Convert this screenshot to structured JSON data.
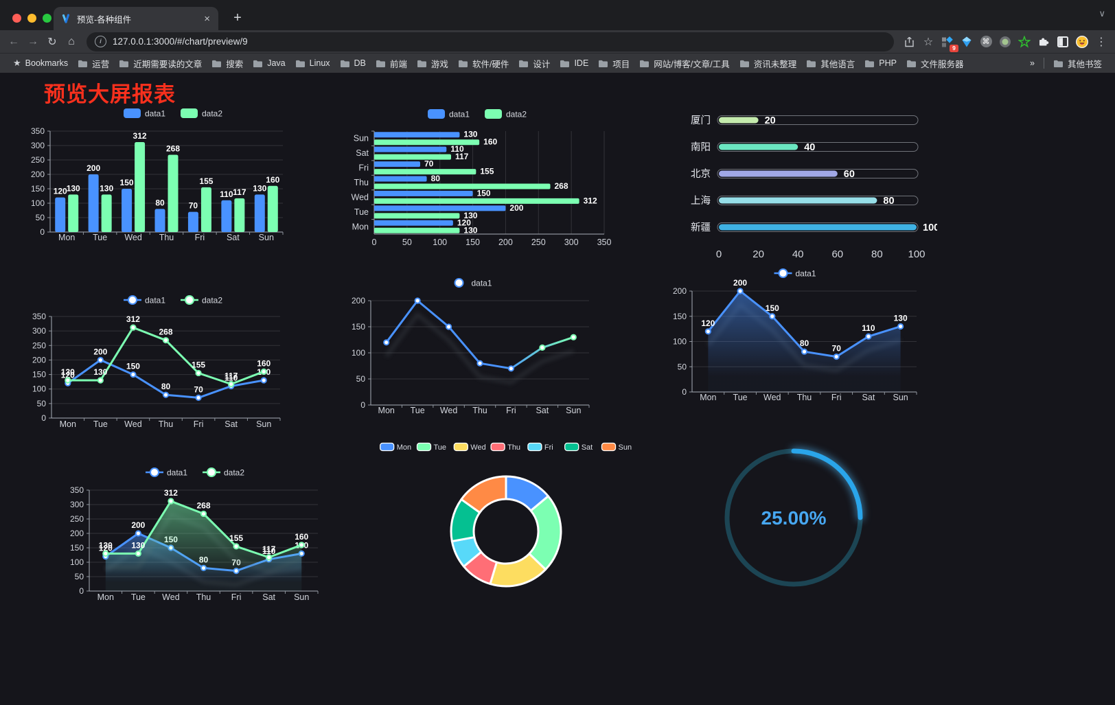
{
  "browser": {
    "traffic_lights": [
      "#ff5f57",
      "#febc2e",
      "#28c840"
    ],
    "tab_title": "预览-各种组件",
    "new_tab_label": "+",
    "url": "127.0.0.1:3000/#/chart/preview/9",
    "extension_badge_count": "9"
  },
  "icons": {
    "back": "←",
    "forward": "→",
    "reload": "↻",
    "home": "⌂",
    "info": "i",
    "bookmark_star": "☆",
    "menu_dots": "⋮",
    "tab_close": "×",
    "command": "⌘",
    "chevron_down": "∨",
    "bookmarks_star": "★"
  },
  "bookmarks": {
    "root_label": "Bookmarks",
    "items": [
      "运营",
      "近期需要读的文章",
      "搜索",
      "Java",
      "Linux",
      "DB",
      "前端",
      "游戏",
      "软件/硬件",
      "设计",
      "IDE",
      "项目",
      "网站/博客/文章/工具",
      "资讯未整理",
      "其他语言",
      "PHP",
      "文件服务器"
    ],
    "overflow": "»",
    "other_label": "其他书签"
  },
  "page": {
    "title": "预览大屏报表",
    "title_color": "#f7301d",
    "background": "#15151b"
  },
  "chart_data": [
    {
      "id": "grouped-bar-vertical",
      "type": "bar",
      "categories": [
        "Mon",
        "Tue",
        "Wed",
        "Thu",
        "Fri",
        "Sat",
        "Sun"
      ],
      "series": [
        {
          "name": "data1",
          "color": "#4992ff",
          "values": [
            120,
            200,
            150,
            80,
            70,
            110,
            130
          ]
        },
        {
          "name": "data2",
          "color": "#7cffb2",
          "values": [
            130,
            130,
            312,
            268,
            155,
            117,
            160
          ]
        }
      ],
      "ylim": [
        0,
        350
      ],
      "yticks": [
        0,
        50,
        100,
        150,
        200,
        250,
        300,
        350
      ],
      "legend_position": "top",
      "value_labels": true,
      "grid": true
    },
    {
      "id": "grouped-bar-horizontal",
      "type": "bar-horizontal",
      "categories": [
        "Mon",
        "Tue",
        "Wed",
        "Thu",
        "Fri",
        "Sat",
        "Sun"
      ],
      "y_axis_order_top_to_bottom": [
        "Sun",
        "Sat",
        "Fri",
        "Thu",
        "Wed",
        "Tue",
        "Mon"
      ],
      "series": [
        {
          "name": "data1",
          "color": "#4992ff",
          "values": [
            120,
            200,
            150,
            80,
            70,
            110,
            130
          ]
        },
        {
          "name": "data2",
          "color": "#7cffb2",
          "values": [
            130,
            130,
            312,
            268,
            155,
            117,
            160
          ]
        }
      ],
      "xlim": [
        0,
        350
      ],
      "xticks": [
        0,
        50,
        100,
        150,
        200,
        250,
        300,
        350
      ],
      "legend_position": "top",
      "value_labels": true,
      "grid": true
    },
    {
      "id": "city-progress-bars",
      "type": "bar",
      "subtype": "pill-progress",
      "max": 100,
      "items": [
        {
          "label": "厦门",
          "value": 20,
          "color": "#c4ebad"
        },
        {
          "label": "南阳",
          "value": 40,
          "color": "#6be6c1"
        },
        {
          "label": "北京",
          "value": 60,
          "color": "#a0a7e6"
        },
        {
          "label": "上海",
          "value": 80,
          "color": "#96dee8"
        },
        {
          "label": "新疆",
          "value": 100,
          "color": "#3fb1e3"
        }
      ],
      "xticks": [
        0,
        20,
        40,
        60,
        80,
        100
      ],
      "value_labels": true
    },
    {
      "id": "dual-line",
      "type": "line",
      "categories": [
        "Mon",
        "Tue",
        "Wed",
        "Thu",
        "Fri",
        "Sat",
        "Sun"
      ],
      "series": [
        {
          "name": "data1",
          "color": "#4992ff",
          "values": [
            120,
            200,
            150,
            80,
            70,
            110,
            130
          ]
        },
        {
          "name": "data2",
          "color": "#7cffb2",
          "values": [
            130,
            130,
            312,
            268,
            155,
            117,
            160
          ]
        }
      ],
      "ylim": [
        0,
        350
      ],
      "yticks": [
        0,
        50,
        100,
        150,
        200,
        250,
        300,
        350
      ],
      "legend_position": "top",
      "value_labels": true,
      "grid": true
    },
    {
      "id": "gradient-line",
      "type": "line",
      "categories": [
        "Mon",
        "Tue",
        "Wed",
        "Thu",
        "Fri",
        "Sat",
        "Sun"
      ],
      "series": [
        {
          "name": "data1",
          "color": [
            "#4992ff",
            "#7cffb2"
          ],
          "values": [
            120,
            200,
            150,
            80,
            70,
            110,
            130
          ]
        }
      ],
      "ylim": [
        0,
        200
      ],
      "yticks": [
        0,
        50,
        100,
        150,
        200
      ],
      "legend_position": "top",
      "value_labels": false,
      "line_shadow": true,
      "grid": true
    },
    {
      "id": "area-line-single",
      "type": "area",
      "categories": [
        "Mon",
        "Tue",
        "Wed",
        "Thu",
        "Fri",
        "Sat",
        "Sun"
      ],
      "series": [
        {
          "name": "data1",
          "color": "#4992ff",
          "values": [
            120,
            200,
            150,
            80,
            70,
            110,
            130
          ],
          "area": true
        }
      ],
      "ylim": [
        0,
        200
      ],
      "yticks": [
        0,
        50,
        100,
        150,
        200
      ],
      "legend_position": "top",
      "value_labels": true,
      "line_shadow": true,
      "grid": true
    },
    {
      "id": "dual-area-line",
      "type": "area",
      "categories": [
        "Mon",
        "Tue",
        "Wed",
        "Thu",
        "Fri",
        "Sat",
        "Sun"
      ],
      "series": [
        {
          "name": "data1",
          "color": "#4992ff",
          "values": [
            120,
            200,
            150,
            80,
            70,
            110,
            130
          ],
          "area": true
        },
        {
          "name": "data2",
          "color": "#7cffb2",
          "values": [
            130,
            130,
            312,
            268,
            155,
            117,
            160
          ],
          "area": true
        }
      ],
      "ylim": [
        0,
        350
      ],
      "yticks": [
        0,
        50,
        100,
        150,
        200,
        250,
        300,
        350
      ],
      "legend_position": "top",
      "value_labels": true,
      "line_shadow": true,
      "grid": true
    },
    {
      "id": "weekday-donut",
      "type": "pie",
      "inner_radius_ratio": 0.59,
      "categories": [
        "Mon",
        "Tue",
        "Wed",
        "Thu",
        "Fri",
        "Sat",
        "Sun"
      ],
      "values": [
        120,
        200,
        150,
        80,
        70,
        110,
        130
      ],
      "colors": [
        "#4992ff",
        "#7cffb2",
        "#fddd60",
        "#ff6e76",
        "#58d9f9",
        "#05c091",
        "#ff8a45"
      ],
      "border_color": "#ffffff",
      "legend_position": "top"
    },
    {
      "id": "percent-gauge",
      "type": "gauge",
      "value_percent": 25,
      "display": "25.00%",
      "arc_color": "#2aa5ea",
      "track_color": "#1c4554",
      "text_color": "#47a7f1"
    }
  ]
}
